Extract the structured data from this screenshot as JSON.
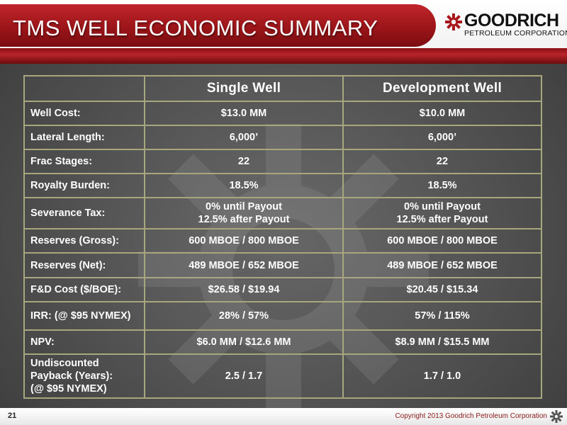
{
  "header": {
    "title": "TMS WELL ECONOMIC SUMMARY",
    "logo_top": "GOODRICH",
    "logo_bottom": "PETROLEUM CORPORATION",
    "brand_red": "#a8171c"
  },
  "table": {
    "columns": [
      "",
      "Single Well",
      "Development Well"
    ],
    "rows": [
      {
        "label": "Well Cost:",
        "single": "$13.0 MM",
        "development": "$10.0 MM"
      },
      {
        "label": "Lateral Length:",
        "single": "6,000’",
        "development": "6,000’"
      },
      {
        "label": "Frac Stages:",
        "single": "22",
        "development": "22"
      },
      {
        "label": "Royalty Burden:",
        "single": "18.5%",
        "development": "18.5%"
      },
      {
        "label": "Severance Tax:",
        "single_l1": "0% until Payout",
        "single_l2": "12.5% after Payout",
        "development_l1": "0% until Payout",
        "development_l2": "12.5% after Payout"
      },
      {
        "label": "Reserves (Gross):",
        "single": "600 MBOE / 800 MBOE",
        "development": "600 MBOE / 800 MBOE"
      },
      {
        "label": "Reserves (Net):",
        "single": "489 MBOE / 652 MBOE",
        "development": "489 MBOE / 652 MBOE"
      },
      {
        "label": "F&D Cost ($/BOE):",
        "single": "$26.58 / $19.94",
        "development": "$20.45 / $15.34"
      },
      {
        "label": "IRR: (@ $95 NYMEX)",
        "single": "28% / 57%",
        "development": "57% / 115%"
      },
      {
        "label": "NPV:",
        "single": "$6.0 MM / $12.6 MM",
        "development": "$8.9 MM / $15.5 MM"
      },
      {
        "label_l1": "Undiscounted",
        "label_l2": "Payback (Years):",
        "label_l3": "(@ $95 NYMEX)",
        "single": "2.5 / 1.7",
        "development": "1.7 / 1.0"
      }
    ]
  },
  "footer": {
    "page_number": "21",
    "copyright": "Copyright 2013 Goodrich Petroleum Corporation"
  }
}
